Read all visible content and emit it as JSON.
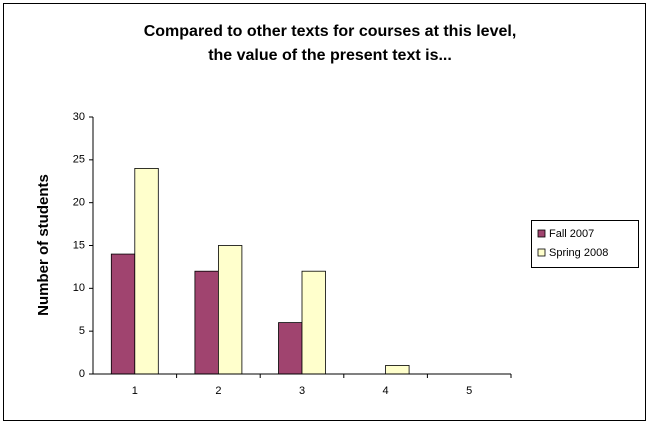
{
  "chart_data": {
    "type": "bar",
    "title": [
      "Compared to other texts for courses at this level,",
      "the value of the present text is..."
    ],
    "y_label": "Number of students",
    "categories": [
      "1",
      "2",
      "3",
      "4",
      "5"
    ],
    "series": [
      {
        "name": "Fall 2007",
        "color": "#a0446f",
        "values": [
          14,
          12,
          6,
          0,
          0
        ]
      },
      {
        "name": "Spring 2008",
        "color": "#ffffcc",
        "values": [
          24,
          15,
          12,
          1,
          0
        ]
      }
    ],
    "ylim": [
      0,
      30
    ],
    "yticks": [
      0,
      5,
      10,
      15,
      20,
      25,
      30
    ],
    "legend": "right"
  }
}
